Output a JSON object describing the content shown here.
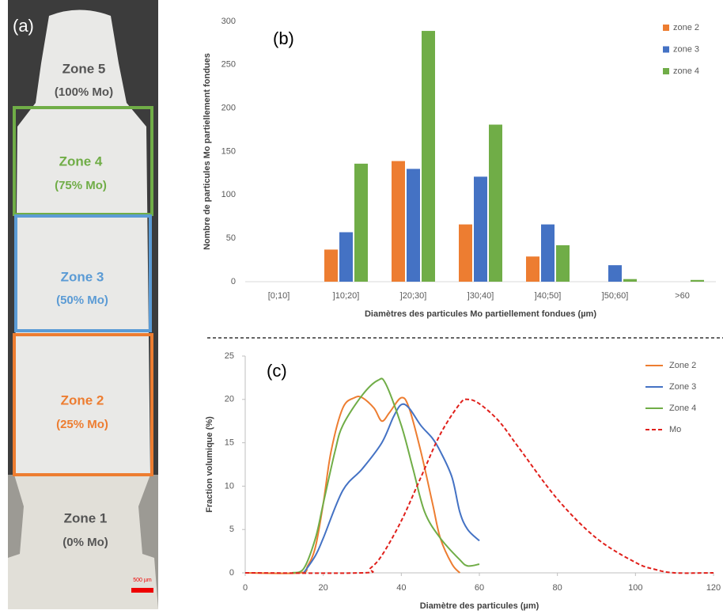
{
  "micrograph": {
    "panel_label": "(a)",
    "zones": [
      {
        "name": "Zone 5",
        "composition": "(100% Mo)"
      },
      {
        "name": "Zone 4",
        "composition": "(75% Mo)"
      },
      {
        "name": "Zone 3",
        "composition": "(50% Mo)"
      },
      {
        "name": "Zone 2",
        "composition": "(25% Mo)"
      },
      {
        "name": "Zone 1",
        "composition": "(0% Mo)"
      }
    ],
    "scale_bar": "500 µm"
  },
  "chart_data": [
    {
      "type": "bar",
      "panel_label": "(b)",
      "x_label": "Diamètres des particules  Mo partiellement fondues (µm)",
      "y_label": "Nombre de particules  Mo partiellement fondues",
      "categories": [
        "[0;10]",
        "]10;20]",
        "]20;30]",
        "]30;40]",
        "]40;50]",
        "]50;60]",
        ">60"
      ],
      "series": [
        {
          "name": "zone 2",
          "color": "#ed7d31",
          "values": [
            0,
            37,
            139,
            66,
            29,
            0,
            0
          ]
        },
        {
          "name": "zone 3",
          "color": "#4472c4",
          "values": [
            0,
            57,
            130,
            121,
            66,
            19,
            0
          ]
        },
        {
          "name": "zone 4",
          "color": "#70ad47",
          "values": [
            0,
            136,
            289,
            181,
            42,
            3,
            2
          ]
        }
      ],
      "ylim": [
        0,
        300
      ],
      "yticks": [
        0,
        50,
        100,
        150,
        200,
        250,
        300
      ],
      "grid": false,
      "legend": "upper right"
    },
    {
      "type": "line",
      "panel_label": "(c)",
      "x_label": "Diamètre des particules (µm)",
      "y_label": "Fraction volumique (%)",
      "series": [
        {
          "name": "Zone 2",
          "color": "#ed7d31",
          "line_style": "solid",
          "x": [
            0,
            14,
            16,
            18,
            20,
            22,
            25,
            28,
            30,
            33,
            35,
            37,
            40,
            42,
            45,
            48,
            50,
            53,
            55
          ],
          "values": [
            0,
            0,
            0.8,
            3,
            8,
            14,
            19,
            20.2,
            20.2,
            19,
            17.5,
            18.5,
            20.2,
            19,
            14,
            8,
            4,
            1,
            0
          ]
        },
        {
          "name": "Zone 3",
          "color": "#4472c4",
          "line_style": "solid",
          "x": [
            15,
            18,
            20,
            25,
            30,
            35,
            38,
            40,
            42,
            45,
            48,
            50,
            53,
            55,
            57,
            60
          ],
          "values": [
            0,
            2,
            4,
            9.5,
            12,
            15,
            18,
            19.4,
            19,
            17,
            15.5,
            14,
            11,
            7,
            5,
            3.7
          ]
        },
        {
          "name": "Zone 4",
          "color": "#70ad47",
          "line_style": "solid",
          "x": [
            12,
            15,
            18,
            20,
            23,
            25,
            30,
            34,
            36,
            40,
            43,
            46,
            50,
            55,
            57,
            60
          ],
          "values": [
            0,
            0.5,
            4,
            8,
            14,
            17,
            20.5,
            22.2,
            21.8,
            17,
            12,
            7,
            4,
            1.5,
            0.8,
            1
          ]
        },
        {
          "name": "Mo",
          "color": "#e0201b",
          "line_style": "dashed",
          "x": [
            0,
            30,
            32,
            35,
            40,
            45,
            50,
            55,
            57,
            60,
            65,
            70,
            80,
            90,
            100,
            105,
            110,
            120
          ],
          "values": [
            0,
            0,
            0.5,
            2,
            6,
            11,
            16,
            19.5,
            20,
            19.5,
            17.5,
            14.5,
            8.5,
            4,
            1.2,
            0.4,
            0,
            0
          ]
        }
      ],
      "xlim": [
        0,
        120
      ],
      "xticks": [
        0,
        20,
        40,
        60,
        80,
        100,
        120
      ],
      "ylim": [
        0,
        25
      ],
      "yticks": [
        0,
        5,
        10,
        15,
        20,
        25
      ],
      "grid": false,
      "legend": "upper right"
    }
  ]
}
